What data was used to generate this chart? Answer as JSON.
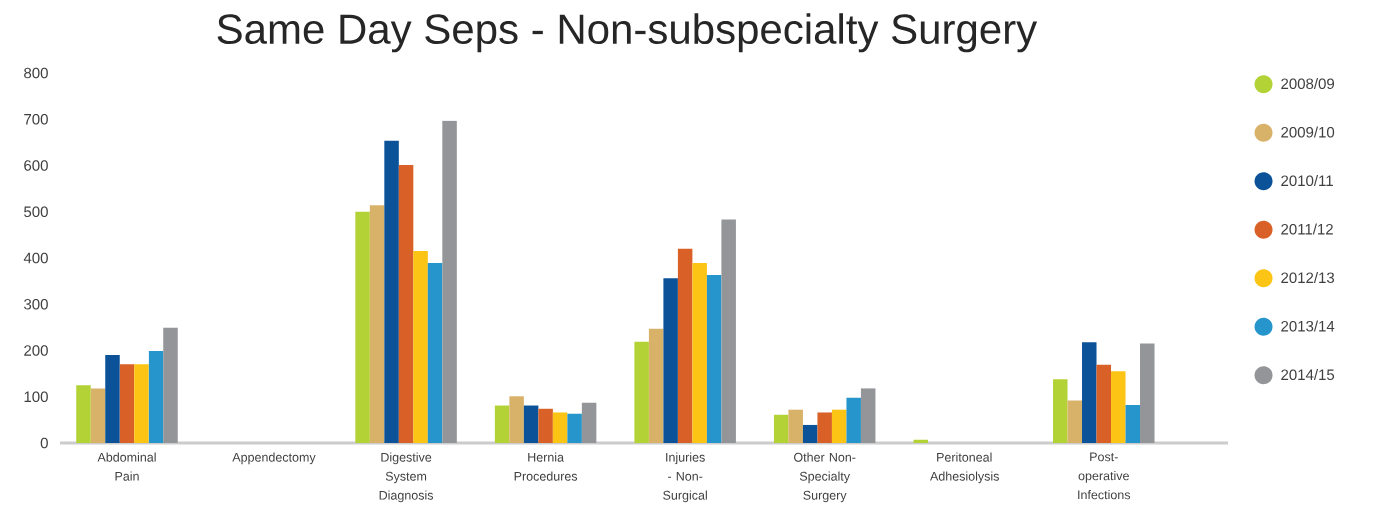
{
  "chart_data": {
    "type": "bar",
    "title": "Same Day Seps - Non-subspecialty Surgery",
    "categories": [
      "Abdominal Pain",
      "Appendectomy",
      "Digestive System Diagnosis",
      "Hernia Procedures",
      "Injuries - Non-Surgical",
      "Other Non-Specialty Surgery",
      "Peritoneal Adhesiolysis",
      "Post-operative Infections"
    ],
    "series": [
      {
        "name": "2008/09",
        "color": "#b2d235",
        "values": [
          125,
          0,
          500,
          81,
          219,
          61,
          7,
          138
        ]
      },
      {
        "name": "2009/10",
        "color": "#d9b26a",
        "values": [
          118,
          0,
          514,
          101,
          247,
          72,
          0,
          92
        ]
      },
      {
        "name": "2010/11",
        "color": "#0b5299",
        "values": [
          190,
          0,
          654,
          81,
          356,
          39,
          0,
          218
        ]
      },
      {
        "name": "2011/12",
        "color": "#d96127",
        "values": [
          170,
          0,
          601,
          74,
          420,
          66,
          0,
          169
        ]
      },
      {
        "name": "2012/13",
        "color": "#fcc414",
        "values": [
          170,
          0,
          415,
          66,
          389,
          72,
          0,
          155
        ]
      },
      {
        "name": "2013/14",
        "color": "#2595cc",
        "values": [
          199,
          0,
          389,
          63,
          363,
          98,
          0,
          82
        ]
      },
      {
        "name": "2014/15",
        "color": "#939598",
        "values": [
          249,
          0,
          697,
          87,
          483,
          118,
          0,
          215
        ]
      }
    ],
    "ylim": [
      0,
      800
    ],
    "yticks": [
      0,
      100,
      200,
      300,
      400,
      500,
      600,
      700,
      800
    ],
    "legend": "right"
  }
}
